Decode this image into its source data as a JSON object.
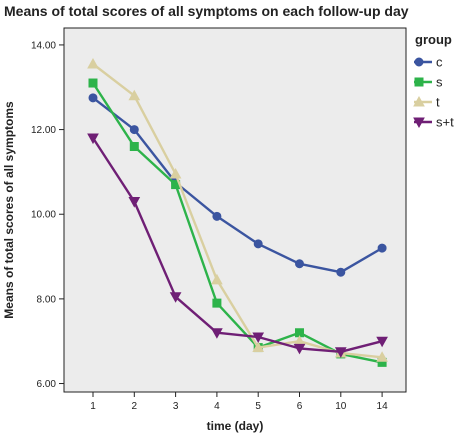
{
  "chart_data": {
    "type": "line",
    "title": "Means of total scores of all symptoms on each follow-up day",
    "xlabel": "time (day)",
    "ylabel": "Means of total scores of all symptoms",
    "categories": [
      "1",
      "2",
      "3",
      "4",
      "5",
      "6",
      "10",
      "14"
    ],
    "ylim": [
      5.8,
      14.4
    ],
    "yticks": [
      "6.00",
      "8.00",
      "10.00",
      "12.00",
      "14.00"
    ],
    "grid": false,
    "plot_background": "#ececec",
    "legend": {
      "title": "group",
      "position": "right"
    },
    "series": [
      {
        "name": "c",
        "color": "#3b55a0",
        "marker": "circle",
        "values": [
          12.75,
          12.0,
          10.75,
          9.95,
          9.3,
          8.83,
          8.63,
          9.2
        ]
      },
      {
        "name": "s",
        "color": "#2db34a",
        "marker": "square",
        "values": [
          13.1,
          11.6,
          10.7,
          7.9,
          6.85,
          7.2,
          6.7,
          6.5
        ]
      },
      {
        "name": "t",
        "color": "#d9cfa0",
        "marker": "triangle-up",
        "values": [
          13.55,
          12.8,
          10.95,
          8.45,
          6.85,
          7.0,
          6.72,
          6.62
        ]
      },
      {
        "name": "s+t",
        "color": "#6f1f75",
        "marker": "triangle-down",
        "values": [
          11.8,
          10.3,
          8.05,
          7.2,
          7.1,
          6.83,
          6.75,
          7.0
        ]
      }
    ]
  }
}
